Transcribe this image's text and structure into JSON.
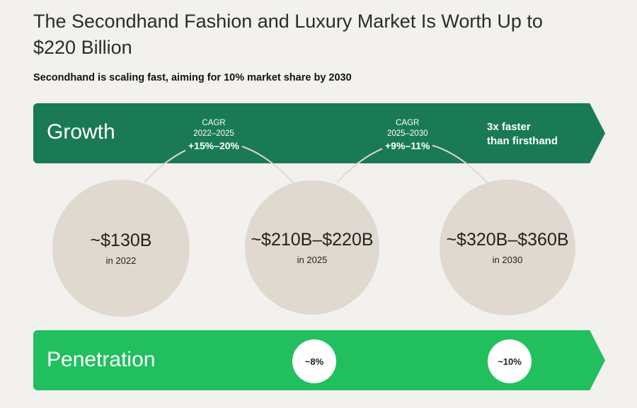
{
  "title": "The Secondhand Fashion and Luxury Market Is Worth Up to $220 Billion",
  "subtitle": "Secondhand is scaling fast, aiming for 10% market share by 2030",
  "growth": {
    "label": "Growth",
    "cagr": [
      {
        "label": "CAGR",
        "period": "2022–2025",
        "value": "+15%–20%"
      },
      {
        "label": "CAGR",
        "period": "2025–2030",
        "value": "+9%–11%"
      }
    ],
    "note_line1": "3x faster",
    "note_line2": "than firsthand"
  },
  "markets": [
    {
      "value": "~$130B",
      "year": "in 2022"
    },
    {
      "value": "~$210B–$220B",
      "year": "in 2025"
    },
    {
      "value": "~$320B–$360B",
      "year": "in 2030"
    }
  ],
  "penetration": {
    "label": "Penetration",
    "values": [
      "~8%",
      "~10%"
    ]
  },
  "colors": {
    "growth": "#1b7a56",
    "penetration": "#22bf5f",
    "circle": "#e0d9cf",
    "background": "#f3f1ee"
  }
}
